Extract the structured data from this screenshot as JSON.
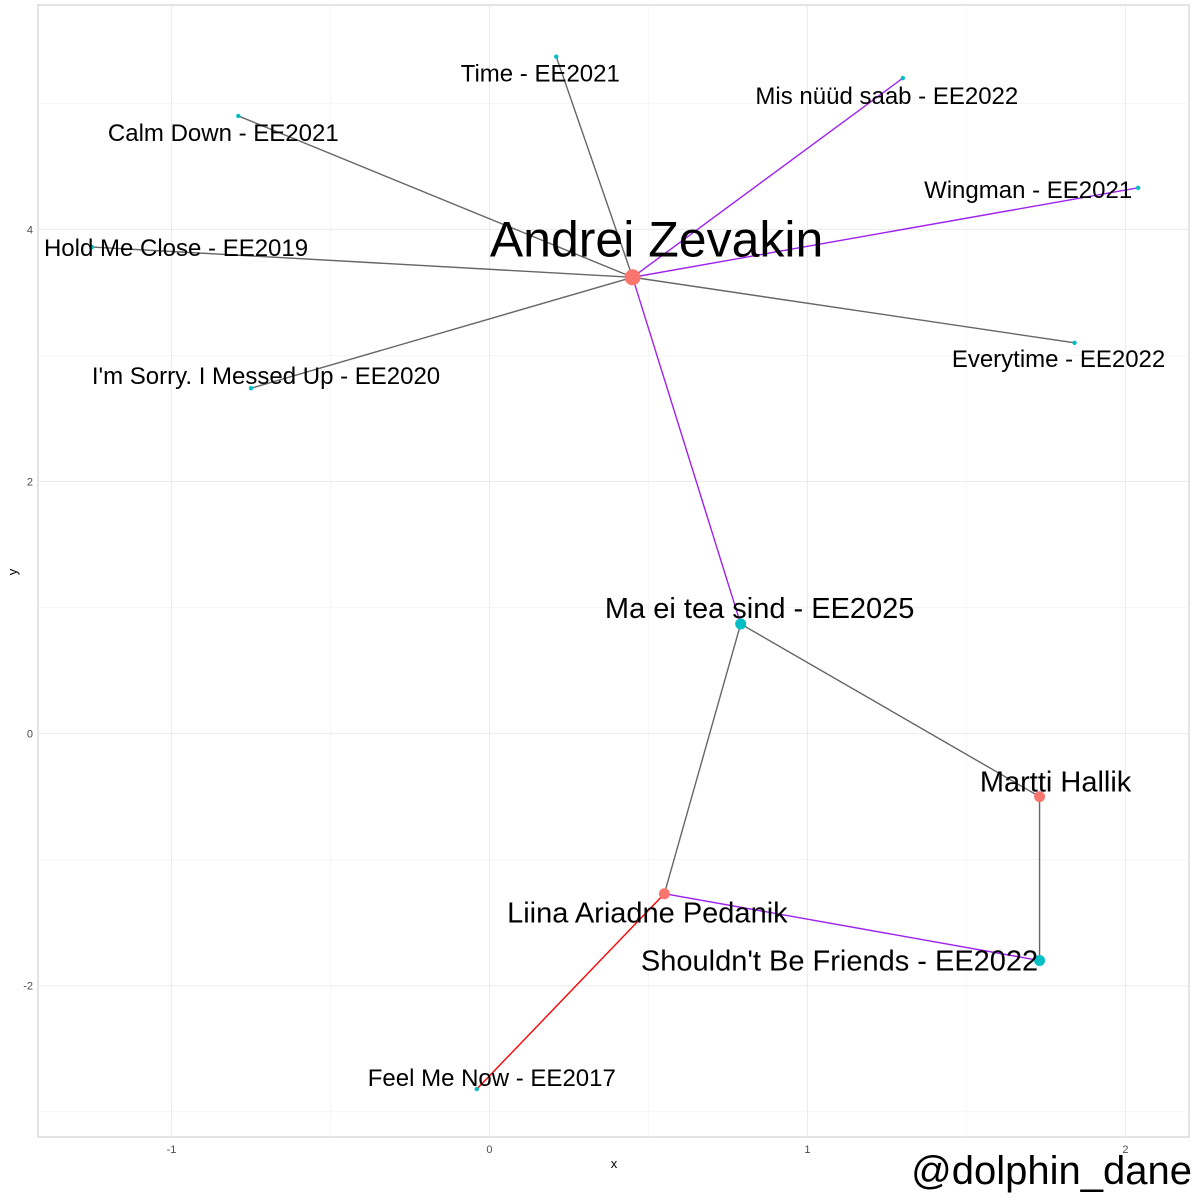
{
  "chart_data": {
    "type": "network",
    "xlabel": "x",
    "ylabel": "y",
    "xlim": [
      -1.42,
      2.2
    ],
    "ylim": [
      -3.2,
      5.78
    ],
    "x_ticks": [
      -1,
      0,
      1,
      2
    ],
    "y_ticks": [
      -2,
      0,
      2,
      4
    ],
    "grid": true,
    "colors": {
      "person": "#F8766D",
      "song": "#00BFC4",
      "edge_default": "#666666",
      "edge_purple": "#A020F0",
      "edge_red": "#FF0000"
    },
    "nodes": [
      {
        "id": "andrei",
        "label": "Andrei Zevakin",
        "kind": "person",
        "x": 0.45,
        "y": 3.62,
        "size": "large"
      },
      {
        "id": "ma_ei",
        "label": "Ma ei tea sind - EE2025",
        "kind": "song",
        "x": 0.79,
        "y": 0.87,
        "size": "medium"
      },
      {
        "id": "martti",
        "label": "Martti Hallik",
        "kind": "person",
        "x": 1.73,
        "y": -0.5,
        "size": "medium"
      },
      {
        "id": "liina",
        "label": "Liina Ariadne Pedanik",
        "kind": "person",
        "x": 0.55,
        "y": -1.27,
        "size": "medium"
      },
      {
        "id": "shouldnt",
        "label": "Shouldn't Be Friends - EE2022",
        "kind": "song",
        "x": 1.73,
        "y": -1.8,
        "size": "medium"
      },
      {
        "id": "feel",
        "label": "Feel Me Now - EE2017",
        "kind": "song",
        "x": -0.04,
        "y": -2.82,
        "size": "small"
      },
      {
        "id": "time",
        "label": "Time - EE2021",
        "kind": "song",
        "x": 0.21,
        "y": 5.37,
        "size": "small"
      },
      {
        "id": "mis",
        "label": "Mis nüüd saab - EE2022",
        "kind": "song",
        "x": 1.3,
        "y": 5.2,
        "size": "small"
      },
      {
        "id": "calm",
        "label": "Calm Down - EE2021",
        "kind": "song",
        "x": -0.79,
        "y": 4.9,
        "size": "small"
      },
      {
        "id": "wingman",
        "label": "Wingman - EE2021",
        "kind": "song",
        "x": 2.04,
        "y": 4.33,
        "size": "small"
      },
      {
        "id": "hold",
        "label": "Hold Me Close - EE2019",
        "kind": "song",
        "x": -1.25,
        "y": 3.86,
        "size": "small"
      },
      {
        "id": "every",
        "label": "Everytime - EE2022",
        "kind": "song",
        "x": 1.84,
        "y": 3.1,
        "size": "small"
      },
      {
        "id": "sorry",
        "label": "I'm Sorry. I Messed Up - EE2020",
        "kind": "song",
        "x": -0.75,
        "y": 2.74,
        "size": "small"
      }
    ],
    "edges": [
      {
        "from": "andrei",
        "to": "time",
        "color": "gray"
      },
      {
        "from": "andrei",
        "to": "calm",
        "color": "gray"
      },
      {
        "from": "andrei",
        "to": "hold",
        "color": "gray"
      },
      {
        "from": "andrei",
        "to": "sorry",
        "color": "gray"
      },
      {
        "from": "andrei",
        "to": "every",
        "color": "gray"
      },
      {
        "from": "andrei",
        "to": "mis",
        "color": "purple"
      },
      {
        "from": "andrei",
        "to": "wingman",
        "color": "purple"
      },
      {
        "from": "andrei",
        "to": "ma_ei",
        "color": "purple"
      },
      {
        "from": "ma_ei",
        "to": "martti",
        "color": "gray"
      },
      {
        "from": "ma_ei",
        "to": "liina",
        "color": "gray"
      },
      {
        "from": "martti",
        "to": "shouldnt",
        "color": "gray"
      },
      {
        "from": "liina",
        "to": "shouldnt",
        "color": "purple"
      },
      {
        "from": "liina",
        "to": "feel",
        "color": "red"
      }
    ]
  },
  "credit": "@dolphin_dane"
}
